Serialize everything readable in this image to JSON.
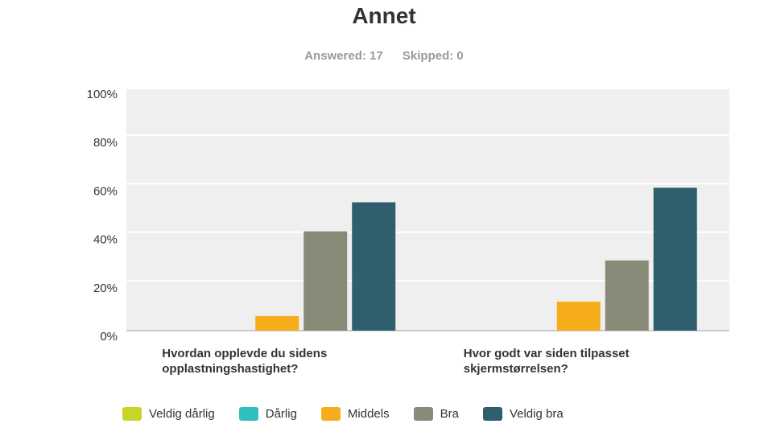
{
  "header": {
    "title": "Annet",
    "answered": "Answered: 17",
    "skipped": "Skipped: 0"
  },
  "chart_data": {
    "type": "bar",
    "categories": [
      [
        "Hvordan opplevde du sidens",
        "opplastningshastighet?"
      ],
      [
        "Hvor godt var siden tilpasset",
        "skjermstørrelsen?"
      ]
    ],
    "series": [
      {
        "name": "Veldig dårlig",
        "color": "#c9d42a",
        "values": [
          0,
          0
        ]
      },
      {
        "name": "Dårlig",
        "color": "#2fbfbf",
        "values": [
          0,
          0
        ]
      },
      {
        "name": "Middels",
        "color": "#f6ad1c",
        "values": [
          6,
          12
        ]
      },
      {
        "name": "Bra",
        "color": "#8a8a78",
        "values": [
          41,
          29
        ]
      },
      {
        "name": "Veldig bra",
        "color": "#2f5f6c",
        "values": [
          53,
          59
        ]
      }
    ],
    "ylim": [
      0,
      100
    ],
    "yticks": [
      "0%",
      "20%",
      "40%",
      "60%",
      "80%",
      "100%"
    ],
    "grid": true,
    "legend_position": "bottom",
    "plot_background": "#efefef"
  }
}
